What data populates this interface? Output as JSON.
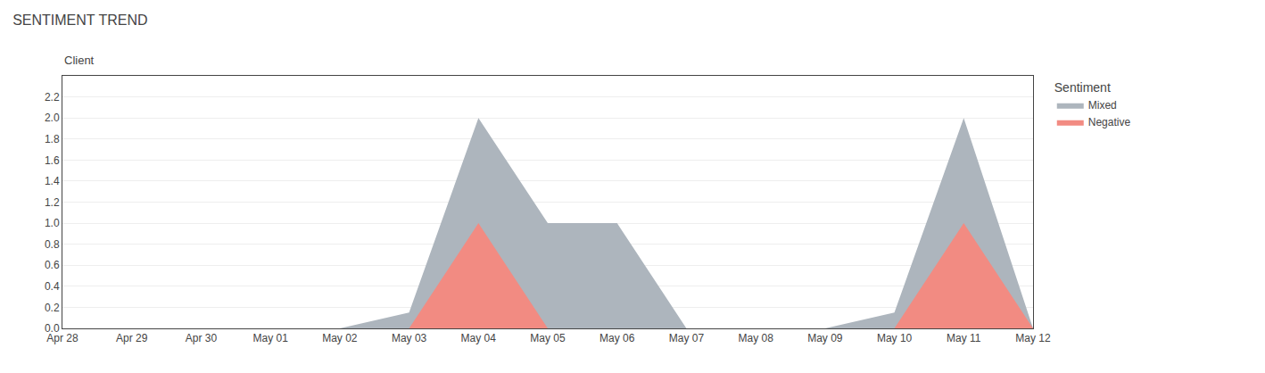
{
  "chart_data": {
    "type": "area",
    "title": "SENTIMENT TREND",
    "y_label": "Client",
    "categories": [
      "Apr 28",
      "Apr 29",
      "Apr 30",
      "May 01",
      "May 02",
      "May 03",
      "May 04",
      "May 05",
      "May 06",
      "May 07",
      "May 08",
      "May 09",
      "May 10",
      "May 11",
      "May 12"
    ],
    "series": [
      {
        "name": "Mixed",
        "color": "#adb5bd",
        "values": [
          0,
          0,
          0,
          0,
          0,
          0.15,
          2.0,
          1.0,
          1.0,
          0.0,
          0,
          0,
          0.15,
          2.0,
          0.0
        ]
      },
      {
        "name": "Negative",
        "color": "#f28b82",
        "values": [
          0,
          0,
          0,
          0,
          0,
          0.0,
          1.0,
          0.0,
          0.0,
          0.0,
          0,
          0,
          0.0,
          1.0,
          0.0
        ]
      }
    ],
    "legend_title": "Sentiment",
    "ylim": [
      0,
      2.4
    ],
    "yticks": [
      {
        "value": 0,
        "label": "0.0"
      },
      0.2,
      0.4,
      0.6,
      0.8,
      {
        "value": 1.0,
        "label": "1.0"
      },
      1.2,
      1.4,
      1.6,
      1.8,
      {
        "value": 2.0,
        "label": "2.0"
      },
      2.2
    ],
    "grid": true,
    "stacked": false,
    "legend": "right"
  }
}
